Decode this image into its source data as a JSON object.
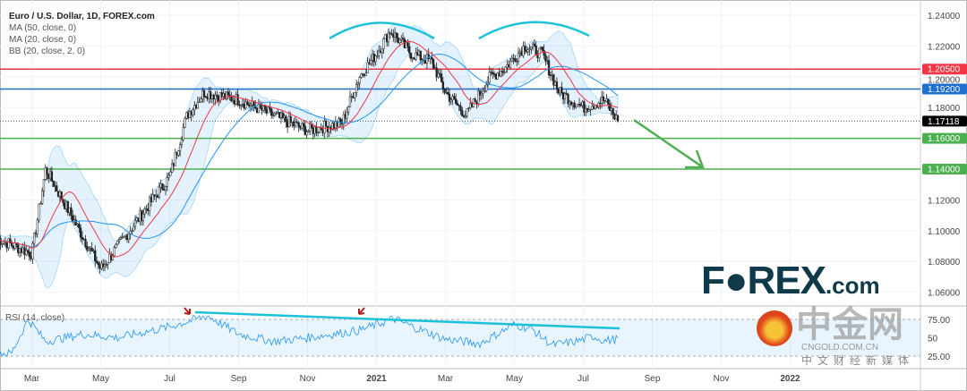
{
  "chart_data": {
    "type": "candlestick",
    "title": "Euro / U.S. Dollar, 1D, FOREX.com",
    "indicators": [
      "MA (50, close, 0)",
      "MA (20, close, 0)",
      "BB (20, close, 2, 0)"
    ],
    "rsi_label": "RSI (14, close)",
    "ylim": [
      1.05,
      1.245
    ],
    "y_ticks": [
      "1.24000",
      "1.22000",
      "1.20000",
      "1.18000",
      "1.12000",
      "1.10000",
      "1.08000",
      "1.06000"
    ],
    "y_tick_values": [
      1.24,
      1.22,
      1.2,
      1.18,
      1.12,
      1.1,
      1.08,
      1.06
    ],
    "x_ticks": [
      "Mar",
      "May",
      "Jul",
      "Sep",
      "Nov",
      "2021",
      "Mar",
      "May",
      "Jul",
      "Sep",
      "Nov",
      "2022"
    ],
    "x_tick_months": [
      1,
      3,
      5,
      7,
      9,
      11,
      13,
      15,
      17,
      19,
      21,
      23
    ],
    "price_path_months": [
      0,
      1.0,
      1.4,
      3.0,
      5.0,
      5.5,
      6.0,
      7.0,
      8.0,
      9.0,
      10.0,
      10.5,
      11.0,
      11.4,
      12.0,
      12.6,
      13.0,
      13.6,
      14.3,
      14.7,
      15.3,
      15.8,
      16.3,
      17.0,
      17.6,
      18.0
    ],
    "price_path_close": [
      1.095,
      1.085,
      1.14,
      1.075,
      1.135,
      1.175,
      1.19,
      1.185,
      1.175,
      1.165,
      1.17,
      1.2,
      1.215,
      1.23,
      1.215,
      1.21,
      1.19,
      1.175,
      1.2,
      1.205,
      1.22,
      1.215,
      1.19,
      1.18,
      1.185,
      1.1712
    ],
    "rsi_path_months": [
      0,
      0.4,
      0.9,
      1.4,
      2.5,
      3.5,
      5.0,
      6.1,
      7.0,
      8.0,
      9.0,
      10.5,
      11.5,
      12.0,
      13.0,
      14.0,
      15.0,
      15.5,
      16.1,
      16.8,
      17.3,
      17.6,
      18.0
    ],
    "rsi_path": [
      30,
      28,
      75,
      45,
      55,
      50,
      65,
      80,
      55,
      45,
      50,
      60,
      76,
      66,
      48,
      42,
      68,
      62,
      40,
      45,
      52,
      46,
      48
    ],
    "rsi_levels": {
      "upper": "75.00",
      "mid": "50",
      "lower": "25.00"
    },
    "levels": [
      {
        "label": "1.20500",
        "value": 1.205,
        "color": "#f23645"
      },
      {
        "label": "1.19200",
        "value": 1.192,
        "color": "#1e6fd0"
      },
      {
        "label": "1.16000",
        "value": 1.16,
        "color": "#4caf50"
      },
      {
        "label": "1.14000",
        "value": 1.14,
        "color": "#4caf50"
      }
    ],
    "current_price": {
      "label": "1.17118",
      "value": 1.17118
    }
  },
  "logo": {
    "main": "F●REX",
    "suffix": ".com"
  },
  "watermark": {
    "name": "中金网",
    "url": "CNGOLD.COM.CN",
    "tagline": "中文财经新媒体"
  }
}
